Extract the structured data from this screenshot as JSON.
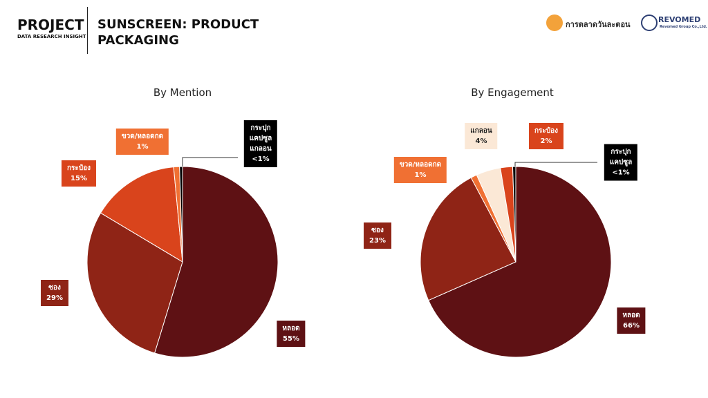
{
  "header": {
    "project": "PROJECT",
    "subtitle": "DATA RESEARCH INSIGHT",
    "title": "SUNSCREEN: PRODUCT\nPACKAGING",
    "logo_text": "การตลาดวันละตอน",
    "brand": "REVOMED",
    "brand_sub": "Revomed Group Co.,Ltd."
  },
  "chart_data": [
    {
      "type": "pie",
      "title": "By Mention",
      "categories": [
        "หลอด",
        "ซอง",
        "กระป๋อง",
        "ขวด/หลอดกด",
        "กระปุก\nแคปซูล\nแกลอน"
      ],
      "values": [
        55,
        29,
        15,
        1,
        0.5
      ],
      "value_labels": [
        "55%",
        "29%",
        "15%",
        "1%",
        "<1%"
      ],
      "colors": [
        "#5e1114",
        "#8f2416",
        "#d9441c",
        "#f07033",
        "#000000"
      ]
    },
    {
      "type": "pie",
      "title": "By Engagement",
      "categories": [
        "หลอด",
        "ซอง",
        "ขวด/หลอดกด",
        "แกลอน",
        "กระป๋อง",
        "กระปุก\nแคปซูล"
      ],
      "values": [
        66,
        23,
        1,
        4,
        2,
        0.5
      ],
      "value_labels": [
        "66%",
        "23%",
        "1%",
        "4%",
        "2%",
        "<1%"
      ],
      "colors": [
        "#5e1114",
        "#8f2416",
        "#f07033",
        "#fbe8d6",
        "#d9441c",
        "#000000"
      ]
    }
  ]
}
